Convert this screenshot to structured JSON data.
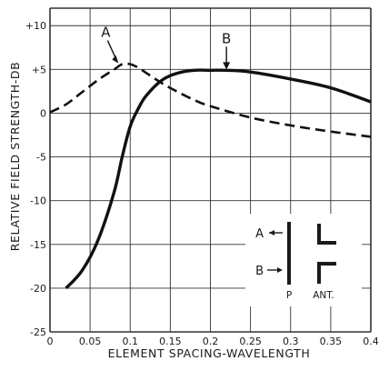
{
  "chart_data": {
    "type": "line",
    "xlabel": "ELEMENT SPACING-WAVELENGTH",
    "ylabel": "RELATIVE FIELD STRENGTH-DB",
    "xlim": [
      0,
      0.4
    ],
    "ylim": [
      -25,
      12
    ],
    "grid": true,
    "x_ticks": [
      0,
      0.05,
      0.1,
      0.15,
      0.2,
      0.25,
      0.3,
      0.35,
      0.4
    ],
    "x_tick_labels": [
      "0",
      "0.05",
      "0.1",
      "0.15",
      "0.2",
      "0.25",
      "0.3",
      "0.35",
      "0.4"
    ],
    "y_ticks": [
      10,
      5,
      0,
      -5,
      -10,
      -15,
      -20,
      -25
    ],
    "y_tick_labels": [
      "+10",
      "+5",
      "0",
      "-5",
      "-10",
      "-15",
      "-20",
      "-25"
    ],
    "series": [
      {
        "name": "A",
        "style": "dashed",
        "x": [
          0,
          0.02,
          0.04,
          0.06,
          0.08,
          0.09,
          0.1,
          0.11,
          0.12,
          0.14,
          0.16,
          0.18,
          0.2,
          0.25,
          0.3,
          0.35,
          0.4
        ],
        "y": [
          0.1,
          1.0,
          2.4,
          3.8,
          5.0,
          5.6,
          5.6,
          5.2,
          4.6,
          3.4,
          2.4,
          1.5,
          0.8,
          -0.5,
          -1.4,
          -2.1,
          -2.7
        ]
      },
      {
        "name": "B",
        "style": "solid",
        "x": [
          0.02,
          0.04,
          0.06,
          0.08,
          0.09,
          0.1,
          0.11,
          0.12,
          0.14,
          0.16,
          0.18,
          0.2,
          0.22,
          0.25,
          0.3,
          0.35,
          0.4
        ],
        "y": [
          -20.0,
          -18.0,
          -14.5,
          -9.0,
          -5.0,
          -1.5,
          0.5,
          2.0,
          3.8,
          4.6,
          4.9,
          4.9,
          4.9,
          4.7,
          3.9,
          2.9,
          1.3
        ]
      }
    ],
    "annotations": [
      {
        "text": "A",
        "x": 0.09,
        "y": 5.6
      },
      {
        "text": "B",
        "x": 0.22,
        "y": 4.9
      }
    ],
    "inset": {
      "labels": [
        "A",
        "B"
      ],
      "caption_left": "P",
      "caption_right": "ANT."
    }
  }
}
